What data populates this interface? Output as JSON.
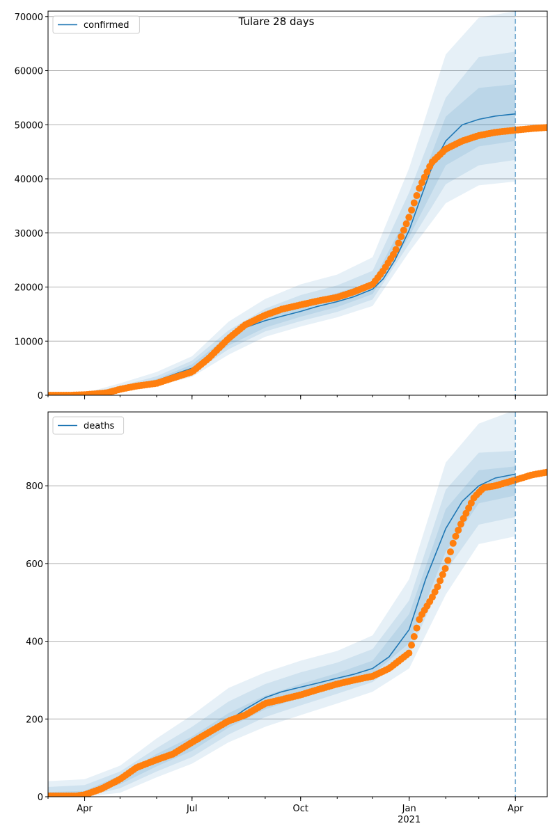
{
  "figure": {
    "title": "Tulare 28 days",
    "forecast_date": "2021-04-01",
    "colors": {
      "model": "#1f77b4",
      "observed": "#ff7f0e",
      "band": "#1f77b4",
      "grid": "#b0b0b0"
    }
  },
  "chart_data": [
    {
      "type": "line",
      "legend_label": "confirmed",
      "legend_position": "upper left",
      "grid": "horizontal",
      "ylim": [
        0,
        71000
      ],
      "xlim": [
        "2020-03-01",
        "2021-04-28"
      ],
      "yticks": [
        0,
        10000,
        20000,
        30000,
        40000,
        50000,
        60000,
        70000
      ],
      "x_ticks": [
        {
          "date": "2020-04-01",
          "label": "Apr"
        },
        {
          "date": "2020-07-01",
          "label": "Jul"
        },
        {
          "date": "2020-10-01",
          "label": "Oct"
        },
        {
          "date": "2021-01-01",
          "label": "Jan",
          "sublabel": "2021"
        },
        {
          "date": "2021-04-01",
          "label": "Apr"
        }
      ],
      "model": {
        "dates": [
          "2020-03-01",
          "2020-03-20",
          "2020-04-01",
          "2020-04-15",
          "2020-05-01",
          "2020-05-15",
          "2020-06-01",
          "2020-06-15",
          "2020-07-01",
          "2020-07-15",
          "2020-08-01",
          "2020-08-15",
          "2020-09-01",
          "2020-09-15",
          "2020-10-01",
          "2020-10-15",
          "2020-11-01",
          "2020-11-15",
          "2020-12-01",
          "2020-12-10",
          "2020-12-20",
          "2021-01-01",
          "2021-01-10",
          "2021-01-20",
          "2021-02-01",
          "2021-02-15",
          "2021-03-01",
          "2021-03-15",
          "2021-04-01"
        ],
        "values": [
          0,
          20,
          100,
          400,
          1200,
          1800,
          2700,
          3800,
          5000,
          6900,
          10000,
          12500,
          13800,
          14600,
          15500,
          16400,
          17300,
          18200,
          19600,
          21500,
          25000,
          30500,
          36000,
          42000,
          47000,
          50000,
          51000,
          51600,
          52000
        ]
      },
      "bands": [
        {
          "dates": [
            "2020-03-01",
            "2020-04-01",
            "2020-05-01",
            "2020-06-01",
            "2020-07-01",
            "2020-08-01",
            "2020-09-01",
            "2020-10-01",
            "2020-11-01",
            "2020-12-01",
            "2021-01-01",
            "2021-02-01",
            "2021-03-01",
            "2021-04-01"
          ],
          "lower": [
            0,
            0,
            600,
            1700,
            3400,
            7500,
            10800,
            12700,
            14400,
            16500,
            26500,
            35500,
            38800,
            39500
          ],
          "upper": [
            300,
            400,
            2200,
            4300,
            7200,
            13600,
            17800,
            20500,
            22300,
            25500,
            42000,
            63000,
            69800,
            71000
          ]
        },
        {
          "dates": [
            "2020-03-01",
            "2020-04-01",
            "2020-05-01",
            "2020-06-01",
            "2020-07-01",
            "2020-08-01",
            "2020-09-01",
            "2020-10-01",
            "2020-11-01",
            "2020-12-01",
            "2021-01-01",
            "2021-02-01",
            "2021-03-01",
            "2021-04-01"
          ],
          "lower": [
            0,
            50,
            850,
            2100,
            4000,
            8500,
            11800,
            13700,
            15400,
            17700,
            28000,
            39000,
            42500,
            43500
          ],
          "upper": [
            150,
            250,
            1700,
            3500,
            6400,
            12000,
            16000,
            18500,
            20300,
            23000,
            37500,
            55000,
            62500,
            63500
          ]
        },
        {
          "dates": [
            "2020-03-01",
            "2020-04-01",
            "2020-05-01",
            "2020-06-01",
            "2020-07-01",
            "2020-08-01",
            "2020-09-01",
            "2020-10-01",
            "2020-11-01",
            "2020-12-01",
            "2021-01-01",
            "2021-02-01",
            "2021-03-01",
            "2021-04-01"
          ],
          "lower": [
            0,
            70,
            1000,
            2400,
            4500,
            9200,
            12500,
            14500,
            16300,
            18700,
            29300,
            42500,
            46000,
            47000
          ],
          "upper": [
            80,
            150,
            1400,
            3000,
            5700,
            11000,
            14800,
            17000,
            18900,
            21000,
            33800,
            51500,
            56800,
            57500
          ]
        }
      ],
      "observed": {
        "dates": [
          "2020-03-01",
          "2020-03-20",
          "2020-04-01",
          "2020-04-10",
          "2020-04-20",
          "2020-05-01",
          "2020-05-15",
          "2020-06-01",
          "2020-06-15",
          "2020-07-01",
          "2020-07-15",
          "2020-08-01",
          "2020-08-15",
          "2020-09-01",
          "2020-09-15",
          "2020-10-01",
          "2020-10-15",
          "2020-11-01",
          "2020-11-15",
          "2020-12-01",
          "2020-12-10",
          "2020-12-20",
          "2021-01-01",
          "2021-01-10",
          "2021-01-20",
          "2021-02-01",
          "2021-02-15",
          "2021-03-01",
          "2021-03-15",
          "2021-04-01",
          "2021-04-15",
          "2021-04-28"
        ],
        "values": [
          0,
          0,
          100,
          250,
          450,
          1100,
          1700,
          2200,
          3200,
          4300,
          6800,
          10500,
          13000,
          14800,
          15900,
          16700,
          17400,
          18100,
          19100,
          20500,
          23000,
          26500,
          33000,
          38500,
          43000,
          45500,
          47000,
          48000,
          48600,
          49000,
          49300,
          49500
        ]
      }
    },
    {
      "type": "line",
      "legend_label": "deaths",
      "legend_position": "upper left",
      "grid": "horizontal",
      "ylim": [
        0,
        990
      ],
      "xlim": [
        "2020-03-01",
        "2021-04-28"
      ],
      "yticks": [
        0,
        200,
        400,
        600,
        800
      ],
      "x_ticks": [
        {
          "date": "2020-04-01",
          "label": "Apr"
        },
        {
          "date": "2020-07-01",
          "label": "Jul"
        },
        {
          "date": "2020-10-01",
          "label": "Oct"
        },
        {
          "date": "2021-01-01",
          "label": "Jan",
          "sublabel": "2021"
        },
        {
          "date": "2021-04-01",
          "label": "Apr"
        }
      ],
      "model": {
        "dates": [
          "2020-03-01",
          "2020-04-01",
          "2020-04-15",
          "2020-05-01",
          "2020-05-15",
          "2020-06-01",
          "2020-06-15",
          "2020-07-01",
          "2020-07-15",
          "2020-08-01",
          "2020-08-15",
          "2020-09-01",
          "2020-09-15",
          "2020-10-01",
          "2020-10-15",
          "2020-11-01",
          "2020-11-15",
          "2020-12-01",
          "2020-12-15",
          "2021-01-01",
          "2021-01-15",
          "2021-02-01",
          "2021-02-15",
          "2021-03-01",
          "2021-03-15",
          "2021-04-01"
        ],
        "values": [
          2,
          3,
          15,
          45,
          75,
          95,
          115,
          135,
          160,
          195,
          225,
          255,
          270,
          282,
          292,
          305,
          315,
          330,
          360,
          430,
          560,
          690,
          760,
          800,
          820,
          830
        ]
      },
      "bands": [
        {
          "dates": [
            "2020-03-01",
            "2020-04-01",
            "2020-05-01",
            "2020-06-01",
            "2020-07-01",
            "2020-08-01",
            "2020-09-01",
            "2020-10-01",
            "2020-11-01",
            "2020-12-01",
            "2021-01-01",
            "2021-02-01",
            "2021-03-01",
            "2021-04-01"
          ],
          "lower": [
            0,
            0,
            10,
            50,
            85,
            140,
            180,
            210,
            240,
            270,
            330,
            520,
            650,
            670
          ],
          "upper": [
            40,
            45,
            80,
            150,
            210,
            280,
            320,
            350,
            375,
            415,
            560,
            860,
            960,
            995
          ]
        },
        {
          "dates": [
            "2020-03-01",
            "2020-04-01",
            "2020-05-01",
            "2020-06-01",
            "2020-07-01",
            "2020-08-01",
            "2020-09-01",
            "2020-10-01",
            "2020-11-01",
            "2020-12-01",
            "2021-01-01",
            "2021-02-01",
            "2021-03-01",
            "2021-04-01"
          ],
          "lower": [
            0,
            0,
            22,
            65,
            102,
            160,
            205,
            235,
            265,
            295,
            365,
            580,
            700,
            720
          ],
          "upper": [
            25,
            30,
            65,
            125,
            180,
            245,
            290,
            320,
            345,
            380,
            505,
            790,
            885,
            890
          ]
        },
        {
          "dates": [
            "2020-03-01",
            "2020-04-01",
            "2020-05-01",
            "2020-06-01",
            "2020-07-01",
            "2020-08-01",
            "2020-09-01",
            "2020-10-01",
            "2020-11-01",
            "2020-12-01",
            "2021-01-01",
            "2021-02-01",
            "2021-03-01",
            "2021-04-01"
          ],
          "lower": [
            0,
            0,
            32,
            78,
            118,
            178,
            225,
            255,
            285,
            315,
            395,
            630,
            755,
            775
          ],
          "upper": [
            12,
            15,
            55,
            110,
            155,
            215,
            260,
            290,
            318,
            350,
            470,
            740,
            840,
            850
          ]
        }
      ],
      "observed": {
        "dates": [
          "2020-03-01",
          "2020-03-25",
          "2020-04-01",
          "2020-04-15",
          "2020-05-01",
          "2020-05-15",
          "2020-06-01",
          "2020-06-15",
          "2020-07-01",
          "2020-07-15",
          "2020-08-01",
          "2020-08-15",
          "2020-09-01",
          "2020-09-15",
          "2020-10-01",
          "2020-10-15",
          "2020-11-01",
          "2020-11-15",
          "2020-12-01",
          "2020-12-15",
          "2021-01-01",
          "2021-01-10",
          "2021-01-20",
          "2021-01-25",
          "2021-02-01",
          "2021-02-08",
          "2021-02-15",
          "2021-02-25",
          "2021-03-05",
          "2021-03-15",
          "2021-04-01",
          "2021-04-15",
          "2021-04-28"
        ],
        "values": [
          2,
          2,
          5,
          20,
          45,
          75,
          95,
          110,
          140,
          165,
          195,
          210,
          240,
          250,
          262,
          275,
          290,
          300,
          310,
          330,
          370,
          460,
          510,
          540,
          590,
          660,
          710,
          770,
          795,
          800,
          815,
          828,
          835
        ]
      }
    }
  ]
}
